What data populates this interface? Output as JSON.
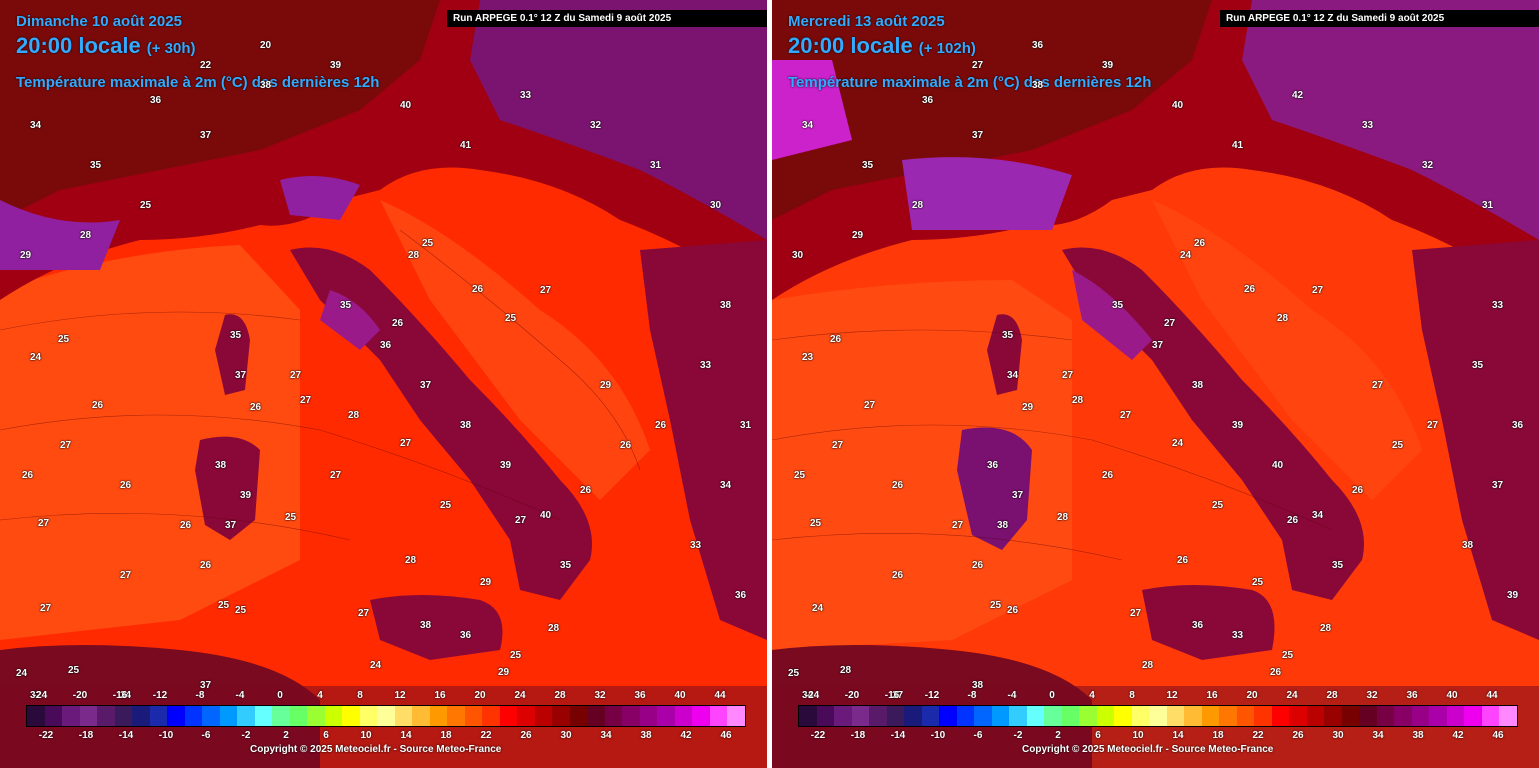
{
  "panels": [
    {
      "id": "left",
      "date": "Dimanche 10 août 2025",
      "time": "20:00 locale",
      "lead": "(+ 30h)",
      "run": "Run ARPEGE 0.1° 12 Z du Samedi 9 août 2025",
      "parameter": "Température maximale à 2m (°C) des dernières 12h",
      "copyright": "Copyright © 2025 Meteociel.fr - Source Meteo-France",
      "sea_labels": [
        "24",
        "26",
        "25",
        "27",
        "26",
        "27",
        "25",
        "28",
        "27",
        "25",
        "27",
        "26",
        "28",
        "29",
        "25",
        "26",
        "25",
        "26",
        "27",
        "28",
        "29",
        "26",
        "27",
        "26",
        "25",
        "24",
        "27",
        "27",
        "26",
        "25",
        "27",
        "28",
        "25",
        "24",
        "26",
        "26",
        "27",
        "25",
        "29",
        "26",
        "27"
      ],
      "land_labels": [
        "34",
        "35",
        "36",
        "37",
        "38",
        "39",
        "40",
        "41",
        "33",
        "32",
        "31",
        "30",
        "29",
        "28",
        "25",
        "22",
        "20",
        "35",
        "36",
        "37",
        "38",
        "39",
        "40",
        "38",
        "33",
        "31",
        "34",
        "33",
        "36",
        "35",
        "37",
        "38",
        "39",
        "37",
        "38",
        "36",
        "32",
        "34",
        "37",
        "35"
      ]
    },
    {
      "id": "right",
      "date": "Mercredi 13 août 2025",
      "time": "20:00 locale",
      "lead": "(+ 102h)",
      "run": "Run ARPEGE 0.1° 12 Z du Samedi 9 août 2025",
      "parameter": "Température maximale à 2m (°C) des dernières 12h",
      "copyright": "Copyright © 2025 Meteociel.fr - Source Meteo-France",
      "sea_labels": [
        "23",
        "25",
        "26",
        "25",
        "27",
        "26",
        "25",
        "26",
        "27",
        "28",
        "24",
        "26",
        "27",
        "25",
        "26",
        "27",
        "28",
        "26",
        "27",
        "28",
        "26",
        "25",
        "28",
        "27",
        "26",
        "25",
        "24",
        "27",
        "29",
        "28",
        "26",
        "24",
        "25",
        "28",
        "26",
        "27",
        "26",
        "25",
        "27",
        "26",
        "27"
      ],
      "land_labels": [
        "34",
        "35",
        "36",
        "37",
        "38",
        "39",
        "40",
        "41",
        "42",
        "33",
        "32",
        "31",
        "30",
        "29",
        "28",
        "27",
        "36",
        "35",
        "37",
        "38",
        "39",
        "40",
        "34",
        "33",
        "35",
        "36",
        "37",
        "38",
        "39",
        "35",
        "34",
        "36",
        "37",
        "38",
        "36",
        "33",
        "34",
        "37",
        "38",
        "35"
      ]
    }
  ],
  "scale": {
    "top_ticks": [
      "-24",
      "-20",
      "-16",
      "-12",
      "-8",
      "-4",
      "0",
      "4",
      "8",
      "12",
      "16",
      "20",
      "24",
      "28",
      "32",
      "36",
      "40",
      "44"
    ],
    "bottom_ticks": [
      "-22",
      "-18",
      "-14",
      "-10",
      "-6",
      "-2",
      "2",
      "6",
      "10",
      "14",
      "18",
      "22",
      "26",
      "30",
      "34",
      "38",
      "42",
      "46"
    ],
    "colors": [
      "#2a0a3a",
      "#4a0a5a",
      "#6a1a7a",
      "#7a2a8a",
      "#5a1a6a",
      "#3a1a5a",
      "#1a1a7a",
      "#1a2aaa",
      "#0000ff",
      "#0033ff",
      "#0066ff",
      "#0099ff",
      "#33ccff",
      "#66ffff",
      "#66ff99",
      "#66ff66",
      "#99ff33",
      "#ccff00",
      "#ffff00",
      "#ffff66",
      "#ffff99",
      "#ffdd66",
      "#ffbb33",
      "#ff9900",
      "#ff7700",
      "#ff5500",
      "#ff3300",
      "#ff0000",
      "#dd0000",
      "#bb0000",
      "#990000",
      "#770000",
      "#660022",
      "#770044",
      "#880066",
      "#990088",
      "#aa00aa",
      "#cc00cc",
      "#ee00ee",
      "#ff44ff",
      "#ff88ff"
    ]
  },
  "colors": {
    "sea": "#ff3b0a",
    "sea_warm": "#ff5a1a",
    "land_hot": "#8a0a4a",
    "land_very_hot": "#9a1a8a",
    "land_mid": "#a00010",
    "title_text": "#33aaff"
  }
}
